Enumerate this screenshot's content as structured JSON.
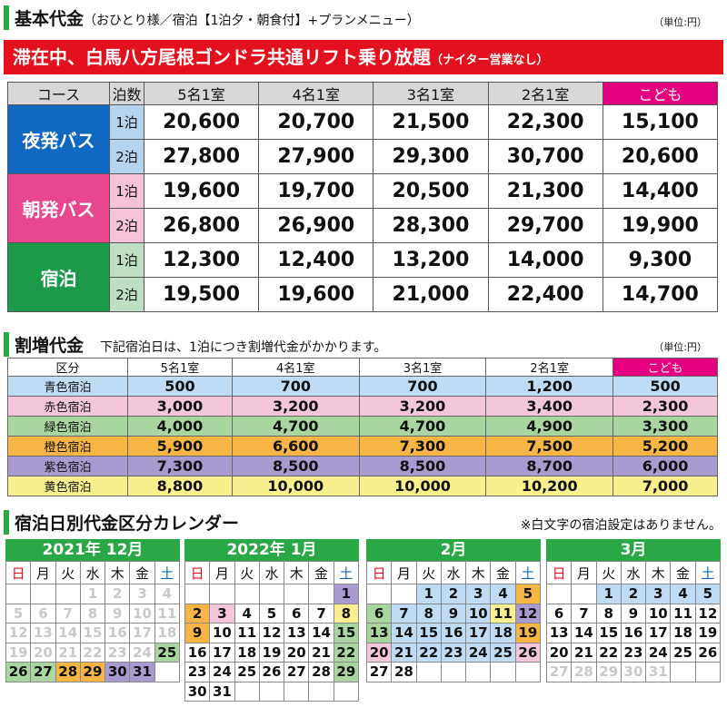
{
  "section1": {
    "title": "基本代金",
    "sub": "（おひとり様／宿泊【1泊夕・朝食付】+プランメニュー）",
    "unit": "（単位:円）",
    "banner_main": "滞在中、白馬八方尾根ゴンドラ共通リフト乗り放題",
    "banner_sub": "（ナイター営業なし）",
    "headers": [
      "コース",
      "泊数",
      "5名1室",
      "4名1室",
      "3名1室",
      "2名1室",
      "こども"
    ],
    "courses": [
      {
        "name": "夜発バス",
        "color": "#1168c0",
        "rows": [
          {
            "nights": "1泊",
            "prices": [
              "20,600",
              "20,700",
              "21,500",
              "22,300",
              "15,100"
            ]
          },
          {
            "nights": "2泊",
            "prices": [
              "27,800",
              "27,900",
              "29,300",
              "30,700",
              "20,600"
            ]
          }
        ]
      },
      {
        "name": "朝発バス",
        "color": "#e8478f",
        "rows": [
          {
            "nights": "1泊",
            "prices": [
              "19,600",
              "19,700",
              "20,500",
              "21,300",
              "14,400"
            ]
          },
          {
            "nights": "2泊",
            "prices": [
              "26,800",
              "26,900",
              "28,300",
              "29,700",
              "19,900"
            ]
          }
        ]
      },
      {
        "name": "宿泊",
        "color": "#1b9a4a",
        "rows": [
          {
            "nights": "1泊",
            "prices": [
              "12,300",
              "12,400",
              "13,200",
              "14,000",
              "9,300"
            ]
          },
          {
            "nights": "2泊",
            "prices": [
              "19,500",
              "19,600",
              "21,000",
              "22,400",
              "14,700"
            ]
          }
        ]
      }
    ]
  },
  "section2": {
    "title": "割増代金",
    "sub": "下記宿泊日は、1泊につき割増代金がかかります。",
    "unit": "（単位:円）",
    "headers": [
      "区分",
      "5名1室",
      "4名1室",
      "3名1室",
      "2名1室",
      "こども"
    ],
    "rows": [
      {
        "label": "青色宿泊",
        "color": "#bfdcf4",
        "values": [
          "500",
          "700",
          "700",
          "1,200",
          "500"
        ]
      },
      {
        "label": "赤色宿泊",
        "color": "#f3c6dc",
        "values": [
          "3,000",
          "3,200",
          "3,200",
          "3,400",
          "2,300"
        ]
      },
      {
        "label": "緑色宿泊",
        "color": "#a9d6a0",
        "values": [
          "4,000",
          "4,700",
          "4,700",
          "4,900",
          "3,300"
        ]
      },
      {
        "label": "橙色宿泊",
        "color": "#f6b545",
        "values": [
          "5,900",
          "6,600",
          "7,300",
          "7,500",
          "5,200"
        ]
      },
      {
        "label": "紫色宿泊",
        "color": "#a99bd0",
        "values": [
          "7,300",
          "8,500",
          "8,500",
          "8,700",
          "6,000"
        ]
      },
      {
        "label": "黄色宿泊",
        "color": "#f8ef8f",
        "values": [
          "8,800",
          "10,000",
          "10,000",
          "10,200",
          "7,000"
        ]
      }
    ]
  },
  "section3": {
    "title": "宿泊日別代金区分カレンダー",
    "note": "※白文字の宿泊設定はありません。",
    "weekdays": [
      "日",
      "月",
      "火",
      "水",
      "木",
      "金",
      "土"
    ],
    "calendars": [
      {
        "title": "2021年 12月",
        "weeks": [
          [
            [
              "",
              ""
            ],
            [
              "",
              ""
            ],
            [
              "",
              ""
            ],
            [
              "1",
              "g"
            ],
            [
              "2",
              "g"
            ],
            [
              "3",
              "g"
            ],
            [
              "4",
              "g"
            ]
          ],
          [
            [
              "5",
              "g"
            ],
            [
              "6",
              "g"
            ],
            [
              "7",
              "g"
            ],
            [
              "8",
              "g"
            ],
            [
              "9",
              "g"
            ],
            [
              "10",
              "g"
            ],
            [
              "11",
              "g"
            ]
          ],
          [
            [
              "12",
              "g"
            ],
            [
              "13",
              "g"
            ],
            [
              "14",
              "g"
            ],
            [
              "15",
              "g"
            ],
            [
              "16",
              "g"
            ],
            [
              "17",
              "g"
            ],
            [
              "18",
              "g"
            ]
          ],
          [
            [
              "19",
              "g"
            ],
            [
              "20",
              "g"
            ],
            [
              "21",
              "g"
            ],
            [
              "22",
              "g"
            ],
            [
              "23",
              "g"
            ],
            [
              "24",
              "g"
            ],
            [
              "25",
              "green"
            ]
          ],
          [
            [
              "26",
              "green"
            ],
            [
              "27",
              "green"
            ],
            [
              "28",
              "orange"
            ],
            [
              "29",
              "orange"
            ],
            [
              "30",
              "purple"
            ],
            [
              "31",
              "purple"
            ],
            [
              "",
              ""
            ]
          ]
        ]
      },
      {
        "title": "2022年 1月",
        "weeks": [
          [
            [
              "",
              ""
            ],
            [
              "",
              ""
            ],
            [
              "",
              ""
            ],
            [
              "",
              ""
            ],
            [
              "",
              ""
            ],
            [
              "",
              ""
            ],
            [
              "1",
              "purple"
            ]
          ],
          [
            [
              "2",
              "orange"
            ],
            [
              "3",
              "pink"
            ],
            [
              "4",
              ""
            ],
            [
              "5",
              ""
            ],
            [
              "6",
              ""
            ],
            [
              "7",
              ""
            ],
            [
              "8",
              "yellow"
            ]
          ],
          [
            [
              "9",
              "orange"
            ],
            [
              "10",
              ""
            ],
            [
              "11",
              ""
            ],
            [
              "12",
              ""
            ],
            [
              "13",
              ""
            ],
            [
              "14",
              ""
            ],
            [
              "15",
              "green"
            ]
          ],
          [
            [
              "16",
              ""
            ],
            [
              "17",
              ""
            ],
            [
              "18",
              ""
            ],
            [
              "19",
              ""
            ],
            [
              "20",
              ""
            ],
            [
              "21",
              ""
            ],
            [
              "22",
              "green"
            ]
          ],
          [
            [
              "23",
              ""
            ],
            [
              "24",
              ""
            ],
            [
              "25",
              ""
            ],
            [
              "26",
              ""
            ],
            [
              "27",
              ""
            ],
            [
              "28",
              ""
            ],
            [
              "29",
              "green"
            ]
          ],
          [
            [
              "30",
              ""
            ],
            [
              "31",
              ""
            ],
            [
              "",
              ""
            ],
            [
              "",
              ""
            ],
            [
              "",
              ""
            ],
            [
              "",
              ""
            ],
            [
              "",
              ""
            ]
          ]
        ]
      },
      {
        "title": "2月",
        "weeks": [
          [
            [
              "",
              ""
            ],
            [
              "",
              ""
            ],
            [
              "1",
              "blue"
            ],
            [
              "2",
              "blue"
            ],
            [
              "3",
              "blue"
            ],
            [
              "4",
              "blue"
            ],
            [
              "5",
              "orange"
            ]
          ],
          [
            [
              "6",
              "green"
            ],
            [
              "7",
              "blue"
            ],
            [
              "8",
              "blue"
            ],
            [
              "9",
              "blue"
            ],
            [
              "10",
              "blue"
            ],
            [
              "11",
              "yellow"
            ],
            [
              "12",
              "purple"
            ]
          ],
          [
            [
              "13",
              "green"
            ],
            [
              "14",
              "blue"
            ],
            [
              "15",
              "blue"
            ],
            [
              "16",
              "blue"
            ],
            [
              "17",
              "blue"
            ],
            [
              "18",
              "blue"
            ],
            [
              "19",
              "orange"
            ]
          ],
          [
            [
              "20",
              "pink"
            ],
            [
              "21",
              "blue"
            ],
            [
              "22",
              "blue"
            ],
            [
              "23",
              "blue"
            ],
            [
              "24",
              "blue"
            ],
            [
              "25",
              "blue"
            ],
            [
              "26",
              "pink"
            ]
          ],
          [
            [
              "27",
              ""
            ],
            [
              "28",
              ""
            ],
            [
              "",
              ""
            ],
            [
              "",
              ""
            ],
            [
              "",
              ""
            ],
            [
              "",
              ""
            ],
            [
              "",
              ""
            ]
          ]
        ]
      },
      {
        "title": "3月",
        "weeks": [
          [
            [
              "",
              ""
            ],
            [
              "",
              ""
            ],
            [
              "1",
              "blue"
            ],
            [
              "2",
              "blue"
            ],
            [
              "3",
              "blue"
            ],
            [
              "4",
              "blue"
            ],
            [
              "5",
              "blue"
            ]
          ],
          [
            [
              "6",
              ""
            ],
            [
              "7",
              ""
            ],
            [
              "8",
              ""
            ],
            [
              "9",
              ""
            ],
            [
              "10",
              ""
            ],
            [
              "11",
              ""
            ],
            [
              "12",
              ""
            ]
          ],
          [
            [
              "13",
              ""
            ],
            [
              "14",
              ""
            ],
            [
              "15",
              ""
            ],
            [
              "16",
              ""
            ],
            [
              "17",
              ""
            ],
            [
              "18",
              ""
            ],
            [
              "19",
              ""
            ]
          ],
          [
            [
              "20",
              ""
            ],
            [
              "21",
              ""
            ],
            [
              "22",
              ""
            ],
            [
              "23",
              ""
            ],
            [
              "24",
              ""
            ],
            [
              "25",
              ""
            ],
            [
              "26",
              ""
            ]
          ],
          [
            [
              "27",
              "g"
            ],
            [
              "28",
              "g"
            ],
            [
              "29",
              "g"
            ],
            [
              "30",
              "g"
            ],
            [
              "31",
              "g"
            ],
            [
              "",
              ""
            ],
            [
              "",
              ""
            ]
          ]
        ]
      }
    ]
  }
}
